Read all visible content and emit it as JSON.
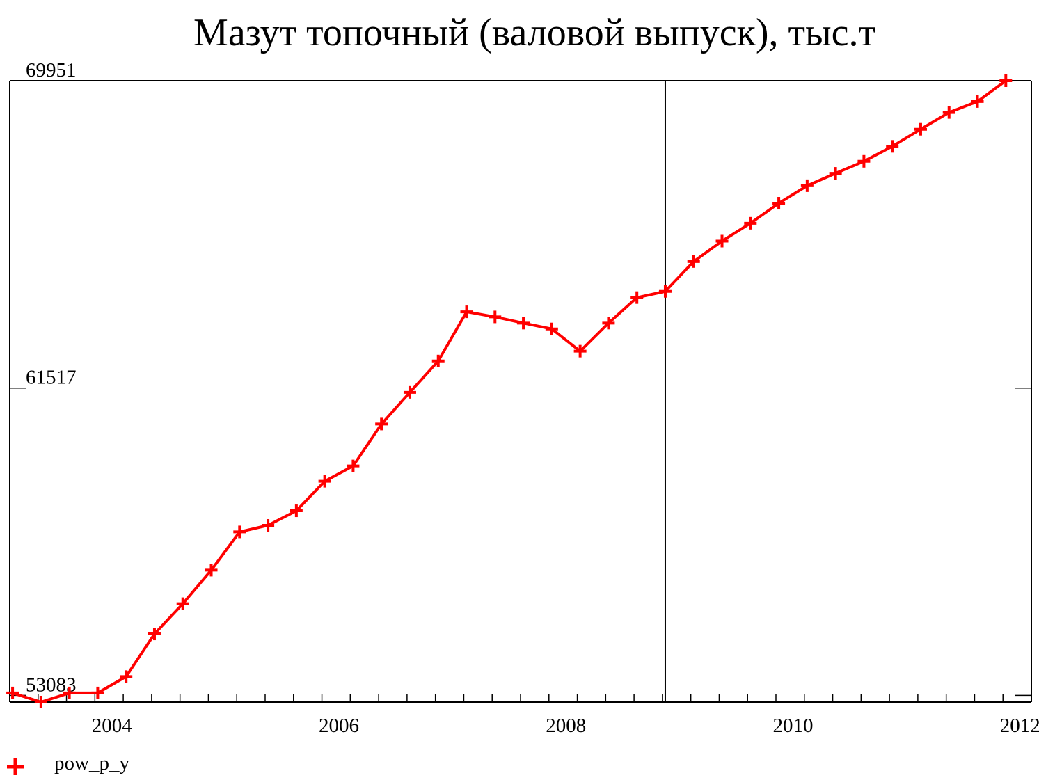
{
  "chart_data": {
    "type": "line",
    "title": "Мазут топочный (валовой выпуск), тыс.т",
    "xlabel": "",
    "ylabel": "",
    "x_tick_labels": [
      "2004",
      "2006",
      "2008",
      "2010",
      "2012"
    ],
    "x_tick_years": [
      2004,
      2006,
      2008,
      2010,
      2012
    ],
    "y_tick_labels": [
      "69951",
      "61517",
      "53083"
    ],
    "y_tick_values": [
      69951,
      61517,
      53083
    ],
    "ylim": [
      52900,
      69951
    ],
    "xlim": [
      2003.6,
      2012.6
    ],
    "divider_x": 2009.375,
    "grid": false,
    "legend_position": "bottom-left",
    "series": [
      {
        "name": "pow_p_y",
        "color": "#ff0000",
        "marker": "plus",
        "x": [
          2003.625,
          2003.875,
          2004.125,
          2004.375,
          2004.625,
          2004.875,
          2005.125,
          2005.375,
          2005.625,
          2005.875,
          2006.125,
          2006.375,
          2006.625,
          2006.875,
          2007.125,
          2007.375,
          2007.625,
          2007.875,
          2008.125,
          2008.375,
          2008.625,
          2008.875,
          2009.125,
          2009.375,
          2009.625,
          2009.875,
          2010.125,
          2010.375,
          2010.625,
          2010.875,
          2011.125,
          2011.375,
          2011.625,
          2011.875,
          2012.125,
          2012.375
        ],
        "values": [
          53150,
          52900,
          53150,
          53150,
          53600,
          54770,
          55600,
          56520,
          57570,
          57750,
          58150,
          58960,
          59380,
          60530,
          61400,
          62260,
          63610,
          63470,
          63300,
          63140,
          62530,
          63300,
          64000,
          64170,
          64990,
          65550,
          66040,
          66590,
          67070,
          67410,
          67740,
          68150,
          68620,
          69080,
          69380,
          69951
        ]
      }
    ]
  }
}
